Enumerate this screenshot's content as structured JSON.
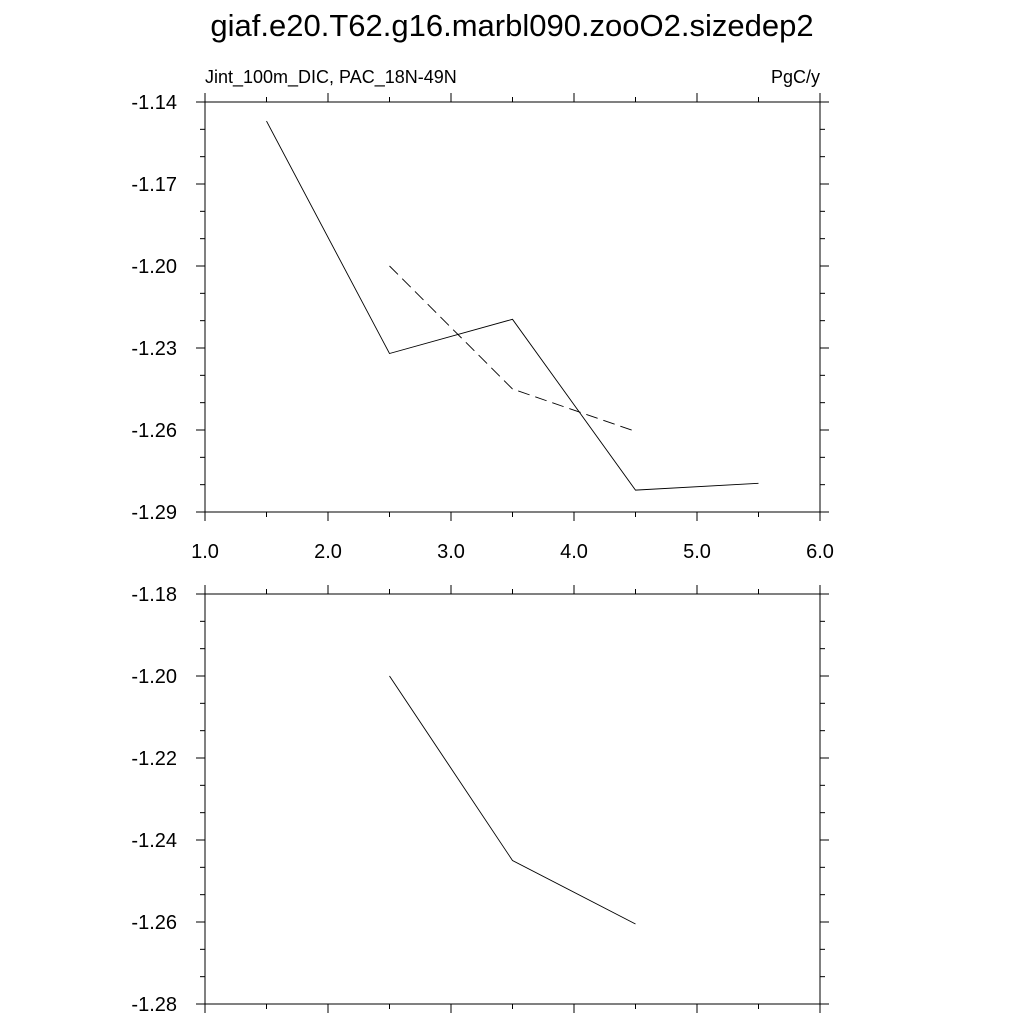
{
  "title": "giaf.e20.T62.g16.marbl090.zooO2.sizedep2",
  "subtitle_left": "Jint_100m_DIC, PAC_18N-49N",
  "subtitle_right": "PgC/y",
  "chart_data": [
    {
      "type": "line",
      "title": "",
      "xlabel": "",
      "ylabel": "",
      "xlim": [
        1.0,
        6.0
      ],
      "ylim": [
        -1.29,
        -1.14
      ],
      "x_ticks": [
        "1.0",
        "2.0",
        "3.0",
        "4.0",
        "5.0",
        "6.0"
      ],
      "y_ticks": [
        "-1.14",
        "-1.17",
        "-1.20",
        "-1.23",
        "-1.26",
        "-1.29"
      ],
      "grid": false,
      "series": [
        {
          "style": "solid",
          "color": "#000000",
          "x": [
            1.5,
            2.5,
            3.5,
            4.5,
            5.5
          ],
          "y": [
            -1.147,
            -1.232,
            -1.2195,
            -1.282,
            -1.2795
          ]
        },
        {
          "style": "dashed",
          "color": "#000000",
          "x": [
            2.5,
            3.5,
            4.5
          ],
          "y": [
            -1.2,
            -1.245,
            -1.2605
          ]
        }
      ]
    },
    {
      "type": "line",
      "title": "",
      "xlabel": "",
      "ylabel": "",
      "xlim": [
        1.0,
        6.0
      ],
      "ylim": [
        -1.28,
        -1.18
      ],
      "x_ticks": [],
      "y_ticks": [
        "-1.18",
        "-1.20",
        "-1.22",
        "-1.24",
        "-1.26",
        "-1.28"
      ],
      "grid": false,
      "series": [
        {
          "style": "solid",
          "color": "#000000",
          "x": [
            2.5,
            3.5,
            4.5
          ],
          "y": [
            -1.2,
            -1.245,
            -1.2605
          ]
        }
      ]
    }
  ]
}
